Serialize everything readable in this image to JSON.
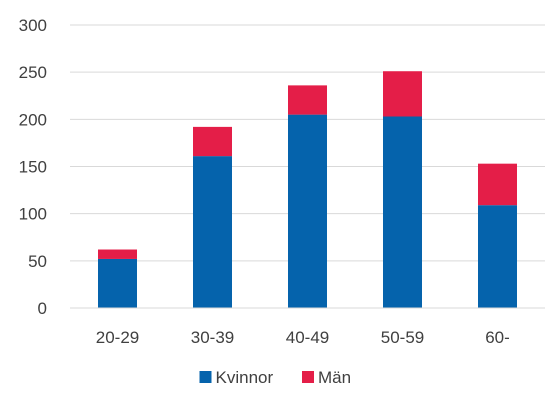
{
  "chart_data": {
    "type": "bar",
    "stacked": true,
    "categories": [
      "20-29",
      "30-39",
      "40-49",
      "50-59",
      "60-"
    ],
    "series": [
      {
        "name": "Kvinnor",
        "color": "#0563AC",
        "values": [
          52,
          161,
          205,
          203,
          109
        ]
      },
      {
        "name": "Män",
        "color": "#E41E48",
        "values": [
          10,
          31,
          31,
          48,
          44
        ]
      }
    ],
    "ylim": [
      0,
      300
    ],
    "yticks": [
      "0",
      "50",
      "100",
      "150",
      "200",
      "250",
      "300"
    ],
    "grid": true,
    "legend_position": "bottom"
  }
}
